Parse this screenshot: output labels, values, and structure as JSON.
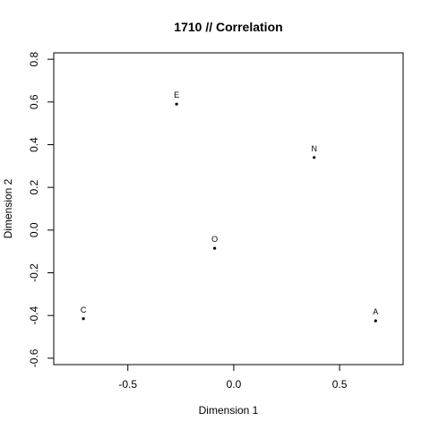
{
  "chart_data": {
    "type": "scatter",
    "title": "1710 // Correlation",
    "xlabel": "Dimension 1",
    "ylabel": "Dimension 2",
    "xlim": [
      -0.85,
      0.8
    ],
    "ylim": [
      -0.63,
      0.83
    ],
    "x_ticks": [
      -0.5,
      0.0,
      0.5
    ],
    "x_tick_labels": [
      "-0.5",
      "0.0",
      "0.5"
    ],
    "y_ticks": [
      -0.6,
      -0.4,
      -0.2,
      0.0,
      0.2,
      0.4,
      0.6,
      0.8
    ],
    "y_tick_labels": [
      "-0.6",
      "-0.4",
      "-0.2",
      "0.0",
      "0.2",
      "0.4",
      "0.6",
      "0.8"
    ],
    "grid": false,
    "points": [
      {
        "label": "E",
        "x": -0.27,
        "y": 0.59
      },
      {
        "label": "N",
        "x": 0.38,
        "y": 0.34
      },
      {
        "label": "O",
        "x": -0.09,
        "y": -0.085
      },
      {
        "label": "C",
        "x": -0.71,
        "y": -0.415
      },
      {
        "label": "A",
        "x": 0.67,
        "y": -0.425
      }
    ]
  }
}
